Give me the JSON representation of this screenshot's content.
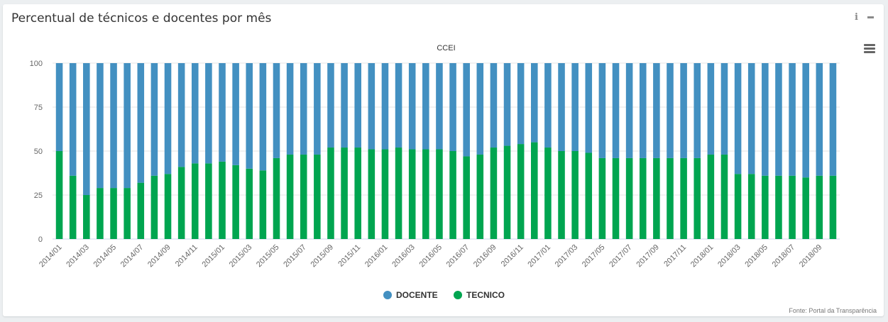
{
  "panel": {
    "title": "Percentual de técnicos e docentes por mês",
    "source": "Fonte: Portal da Transparência"
  },
  "colors": {
    "docente": "#4390c1",
    "tecnico": "#00a550",
    "grid": "#e6e6e6",
    "axis": "#ccd6eb"
  },
  "chart_data": {
    "type": "bar",
    "stacked": true,
    "title": "CCEI",
    "ylim": [
      0,
      100
    ],
    "yticks": [
      0,
      25,
      50,
      75,
      100
    ],
    "grid": true,
    "legend_position": "bottom-center",
    "categories": [
      "2014/01",
      "2014/02",
      "2014/03",
      "2014/04",
      "2014/05",
      "2014/06",
      "2014/07",
      "2014/08",
      "2014/09",
      "2014/10",
      "2014/11",
      "2014/12",
      "2015/01",
      "2015/02",
      "2015/03",
      "2015/04",
      "2015/05",
      "2015/06",
      "2015/07",
      "2015/08",
      "2015/09",
      "2015/10",
      "2015/11",
      "2015/12",
      "2016/01",
      "2016/02",
      "2016/03",
      "2016/04",
      "2016/05",
      "2016/06",
      "2016/07",
      "2016/08",
      "2016/09",
      "2016/10",
      "2016/11",
      "2016/12",
      "2017/01",
      "2017/02",
      "2017/03",
      "2017/04",
      "2017/05",
      "2017/06",
      "2017/07",
      "2017/08",
      "2017/09",
      "2017/10",
      "2017/11",
      "2017/12",
      "2018/01",
      "2018/02",
      "2018/03",
      "2018/04",
      "2018/05",
      "2018/06",
      "2018/07",
      "2018/08",
      "2018/09",
      "2018/10"
    ],
    "tick_labels": [
      "2014/01",
      "",
      "2014/03",
      "",
      "2014/05",
      "",
      "2014/07",
      "",
      "2014/09",
      "",
      "2014/11",
      "",
      "2015/01",
      "",
      "2015/03",
      "",
      "2015/05",
      "",
      "2015/07",
      "",
      "2015/09",
      "",
      "2015/11",
      "",
      "2016/01",
      "",
      "2016/03",
      "",
      "2016/05",
      "",
      "2016/07",
      "",
      "2016/09",
      "",
      "2016/11",
      "",
      "2017/01",
      "",
      "2017/03",
      "",
      "2017/05",
      "",
      "2017/07",
      "",
      "2017/09",
      "",
      "2017/11",
      "",
      "2018/01",
      "",
      "2018/03",
      "",
      "2018/05",
      "",
      "2018/07",
      "",
      "2018/09",
      ""
    ],
    "series": [
      {
        "name": "DOCENTE",
        "color": "#4390c1",
        "values": [
          50,
          64,
          75,
          71,
          71,
          71,
          68,
          64,
          63,
          59,
          57,
          57,
          56,
          58,
          60,
          61,
          54,
          52,
          52,
          52,
          48,
          48,
          48,
          49,
          49,
          48,
          49,
          49,
          49,
          50,
          53,
          52,
          48,
          47,
          46,
          45,
          48,
          50,
          50,
          51,
          54,
          54,
          54,
          54,
          54,
          54,
          54,
          54,
          52,
          52,
          63,
          63,
          64,
          64,
          64,
          65,
          64,
          64
        ]
      },
      {
        "name": "TECNICO",
        "color": "#00a550",
        "values": [
          50,
          36,
          25,
          29,
          29,
          29,
          32,
          36,
          37,
          41,
          43,
          43,
          44,
          42,
          40,
          39,
          46,
          48,
          48,
          48,
          52,
          52,
          52,
          51,
          51,
          52,
          51,
          51,
          51,
          50,
          47,
          48,
          52,
          53,
          54,
          55,
          52,
          50,
          50,
          49,
          46,
          46,
          46,
          46,
          46,
          46,
          46,
          46,
          48,
          48,
          37,
          37,
          36,
          36,
          36,
          35,
          36,
          36
        ]
      }
    ]
  }
}
